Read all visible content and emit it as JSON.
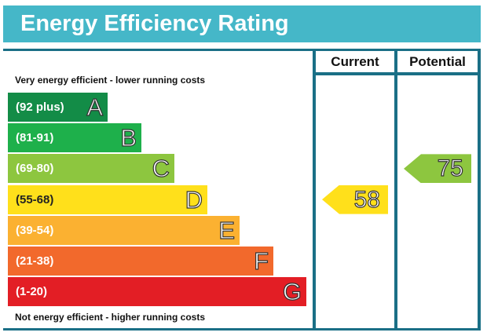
{
  "title": "Energy Efficiency Rating",
  "columns": {
    "current": "Current",
    "potential": "Potential"
  },
  "notes": {
    "top": "Very energy efficient - lower running costs",
    "bottom": "Not energy efficient - higher running costs"
  },
  "chart_data": {
    "type": "bar",
    "bands": [
      {
        "range": "(92 plus)",
        "letter": "A",
        "color": "#138c47"
      },
      {
        "range": "(81-91)",
        "letter": "B",
        "color": "#1eb04b"
      },
      {
        "range": "(69-80)",
        "letter": "C",
        "color": "#8dc63f"
      },
      {
        "range": "(55-68)",
        "letter": "D",
        "color": "#ffe01b"
      },
      {
        "range": "(39-54)",
        "letter": "E",
        "color": "#fbb131"
      },
      {
        "range": "(21-38)",
        "letter": "F",
        "color": "#f2692c"
      },
      {
        "range": "(1-20)",
        "letter": "G",
        "color": "#e31e25"
      }
    ],
    "current": {
      "value": 58,
      "band": "D",
      "color": "#ffe01b"
    },
    "potential": {
      "value": 75,
      "band": "C",
      "color": "#8dc63f"
    }
  }
}
